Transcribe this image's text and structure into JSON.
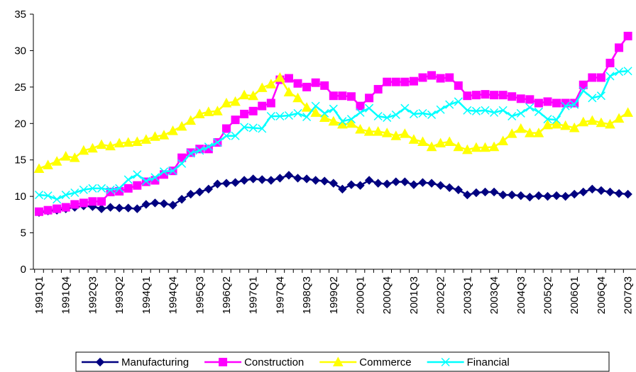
{
  "chart_data": {
    "type": "line",
    "categories": [
      "1991Q1",
      null,
      null,
      "1991Q4",
      null,
      null,
      "1992Q3",
      null,
      null,
      "1993Q2",
      null,
      null,
      "1994Q1",
      null,
      null,
      "1994Q4",
      null,
      null,
      "1995Q3",
      null,
      null,
      "1996Q2",
      null,
      null,
      "1997Q1",
      null,
      null,
      "1997Q4",
      null,
      null,
      "1998Q3",
      null,
      null,
      "1999Q2",
      null,
      null,
      "2000Q1",
      null,
      null,
      "2000Q4",
      null,
      null,
      "2001Q3",
      null,
      null,
      "2002Q2",
      null,
      null,
      "2003Q1",
      null,
      null,
      "2003Q4",
      null,
      null,
      "2004Q3",
      null,
      null,
      "2005Q2",
      null,
      null,
      "2006Q1",
      null,
      null,
      "2006Q4",
      null,
      null,
      "2007Q3"
    ],
    "series": [
      {
        "name": "Manufacturing",
        "color": "#000080",
        "marker": "diamond",
        "values": [
          7.8,
          8.0,
          8.1,
          8.3,
          8.5,
          8.7,
          8.6,
          8.3,
          8.5,
          8.4,
          8.4,
          8.3,
          8.9,
          9.1,
          9.0,
          8.8,
          9.6,
          10.3,
          10.6,
          11.0,
          11.7,
          11.8,
          11.9,
          12.2,
          12.4,
          12.3,
          12.2,
          12.5,
          12.9,
          12.5,
          12.4,
          12.2,
          12.1,
          11.8,
          11.0,
          11.6,
          11.5,
          12.2,
          11.8,
          11.7,
          12.0,
          12.0,
          11.6,
          11.9,
          11.8,
          11.5,
          11.2,
          10.9,
          10.2,
          10.5,
          10.6,
          10.6,
          10.2,
          10.2,
          10.1,
          9.9,
          10.1,
          10.0,
          10.1,
          10.0,
          10.3,
          10.6,
          11.0,
          10.8,
          10.6,
          10.4,
          10.3
        ]
      },
      {
        "name": "Construction",
        "color": "#FF00FF",
        "marker": "square",
        "values": [
          7.9,
          8.1,
          8.3,
          8.5,
          8.9,
          9.1,
          9.3,
          9.3,
          10.6,
          10.7,
          11.1,
          11.5,
          12.0,
          12.2,
          13.0,
          13.5,
          15.3,
          16.0,
          16.5,
          16.5,
          17.4,
          19.3,
          20.5,
          21.3,
          21.7,
          22.4,
          22.8,
          26.0,
          26.2,
          25.5,
          25.0,
          25.6,
          25.2,
          23.8,
          23.8,
          23.7,
          22.4,
          23.5,
          24.7,
          25.7,
          25.7,
          25.7,
          25.8,
          26.3,
          26.6,
          26.2,
          26.3,
          25.2,
          23.8,
          23.9,
          24.0,
          23.9,
          23.9,
          23.7,
          23.4,
          23.3,
          22.8,
          23.0,
          22.8,
          22.8,
          22.8,
          25.3,
          26.3,
          26.3,
          28.3,
          30.4,
          32.0
        ]
      },
      {
        "name": "Commerce",
        "color": "#FFFF00",
        "marker": "triangle",
        "values": [
          13.8,
          14.3,
          14.8,
          15.5,
          15.3,
          16.3,
          16.6,
          17.1,
          16.9,
          17.3,
          17.4,
          17.5,
          17.8,
          18.2,
          18.4,
          19.0,
          19.6,
          20.4,
          21.3,
          21.6,
          21.7,
          22.8,
          23.0,
          23.9,
          23.8,
          24.9,
          25.4,
          26.3,
          24.3,
          23.5,
          22.2,
          21.5,
          20.8,
          20.3,
          19.9,
          20.0,
          19.2,
          18.9,
          18.9,
          18.7,
          18.3,
          18.6,
          17.8,
          17.5,
          16.8,
          17.3,
          17.5,
          16.8,
          16.4,
          16.7,
          16.7,
          16.8,
          17.6,
          18.6,
          19.3,
          18.7,
          18.7,
          19.8,
          19.9,
          19.7,
          19.4,
          20.2,
          20.4,
          20.1,
          19.9,
          20.7,
          21.5
        ]
      },
      {
        "name": "Financial",
        "color": "#00FFFF",
        "marker": "x",
        "values": [
          10.2,
          10.1,
          9.6,
          10.2,
          10.5,
          10.9,
          11.1,
          11.1,
          10.9,
          11.1,
          12.3,
          13.0,
          12.1,
          12.6,
          13.4,
          13.5,
          14.5,
          15.9,
          16.3,
          16.8,
          17.4,
          18.3,
          18.3,
          19.5,
          19.4,
          19.3,
          21.0,
          21.0,
          21.1,
          21.4,
          20.9,
          22.4,
          21.4,
          22.0,
          20.3,
          20.6,
          21.5,
          22.1,
          21.0,
          20.8,
          21.2,
          22.1,
          21.3,
          21.4,
          21.2,
          21.9,
          22.6,
          23.0,
          21.8,
          21.7,
          21.8,
          21.5,
          21.8,
          21.0,
          21.4,
          22.2,
          21.6,
          20.6,
          20.5,
          22.4,
          22.6,
          24.5,
          23.5,
          23.8,
          26.5,
          27.1,
          27.2
        ]
      }
    ],
    "ylim": [
      0,
      35
    ],
    "yticks": [
      0,
      5,
      10,
      15,
      20,
      25,
      30,
      35
    ],
    "legend": "bottom"
  }
}
